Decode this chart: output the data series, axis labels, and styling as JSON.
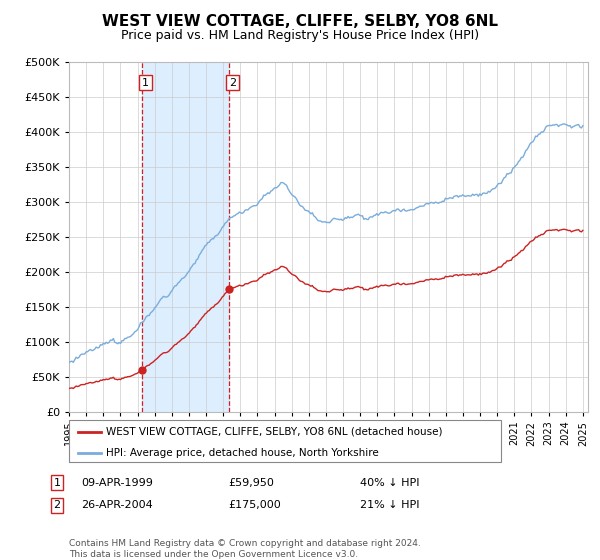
{
  "title": "WEST VIEW COTTAGE, CLIFFE, SELBY, YO8 6NL",
  "subtitle": "Price paid vs. HM Land Registry's House Price Index (HPI)",
  "ylim": [
    0,
    500000
  ],
  "yticks": [
    0,
    50000,
    100000,
    150000,
    200000,
    250000,
    300000,
    350000,
    400000,
    450000,
    500000
  ],
  "xlim_start": 1995.0,
  "xlim_end": 2025.3,
  "sale1_date": 1999.27,
  "sale1_price": 59950,
  "sale2_date": 2004.32,
  "sale2_price": 175000,
  "legend_line1": "WEST VIEW COTTAGE, CLIFFE, SELBY, YO8 6NL (detached house)",
  "legend_line2": "HPI: Average price, detached house, North Yorkshire",
  "row1_label": "1",
  "row1_date": "09-APR-1999",
  "row1_price": "£59,950",
  "row1_pct": "40% ↓ HPI",
  "row2_label": "2",
  "row2_date": "26-APR-2004",
  "row2_price": "£175,000",
  "row2_pct": "21% ↓ HPI",
  "footnote": "Contains HM Land Registry data © Crown copyright and database right 2024.\nThis data is licensed under the Open Government Licence v3.0.",
  "hpi_color": "#7aaddb",
  "sold_color": "#cc2222",
  "bg_color": "#ffffff",
  "grid_color": "#cccccc",
  "shade_color": "#ddeeff",
  "title_fontsize": 11,
  "subtitle_fontsize": 9
}
